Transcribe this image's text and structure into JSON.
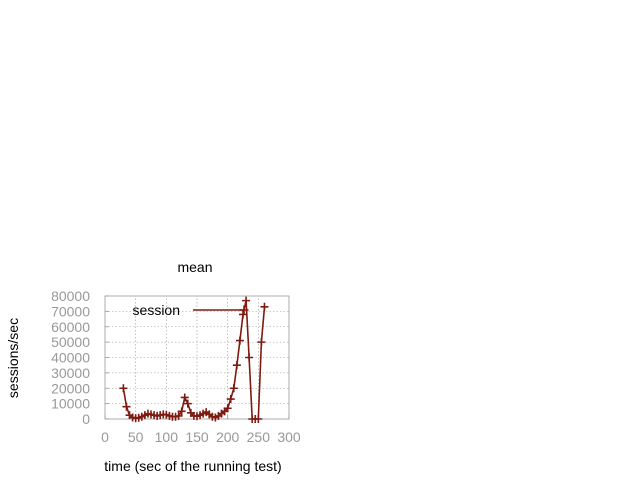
{
  "chart_data": {
    "type": "line",
    "title": "mean",
    "xlabel": "time (sec of the running test)",
    "ylabel": "sessions/sec",
    "xlim": [
      0,
      300
    ],
    "ylim": [
      0,
      80000
    ],
    "xticks": [
      0,
      50,
      100,
      150,
      200,
      250,
      300
    ],
    "yticks": [
      0,
      10000,
      20000,
      30000,
      40000,
      50000,
      60000,
      70000,
      80000
    ],
    "xtick_labels": [
      "0",
      "50",
      "100",
      "150",
      "200",
      "250",
      "300"
    ],
    "ytick_labels": [
      "0",
      "10000",
      "20000",
      "30000",
      "40000",
      "50000",
      "60000",
      "70000",
      "80000"
    ],
    "grid": true,
    "legend": "top-left",
    "color": "#7f1a10",
    "series": [
      {
        "name": "session",
        "x": [
          30,
          35,
          40,
          45,
          50,
          55,
          60,
          65,
          70,
          75,
          80,
          85,
          90,
          95,
          100,
          105,
          110,
          115,
          120,
          125,
          130,
          135,
          140,
          145,
          150,
          155,
          160,
          165,
          170,
          175,
          180,
          185,
          190,
          195,
          200,
          205,
          210,
          215,
          220,
          225,
          230,
          235,
          240,
          245,
          250,
          255,
          260
        ],
        "y": [
          20000,
          8000,
          2500,
          1000,
          500,
          800,
          1500,
          2500,
          3500,
          3000,
          2500,
          2000,
          2500,
          3000,
          2800,
          2000,
          1500,
          1500,
          2000,
          5000,
          14000,
          10000,
          4000,
          2000,
          1800,
          2500,
          3500,
          4500,
          3000,
          1500,
          1000,
          2000,
          3500,
          5000,
          7000,
          13000,
          20000,
          35000,
          51000,
          68000,
          77000,
          40000,
          0,
          0,
          0,
          50000,
          73000
        ]
      }
    ]
  }
}
